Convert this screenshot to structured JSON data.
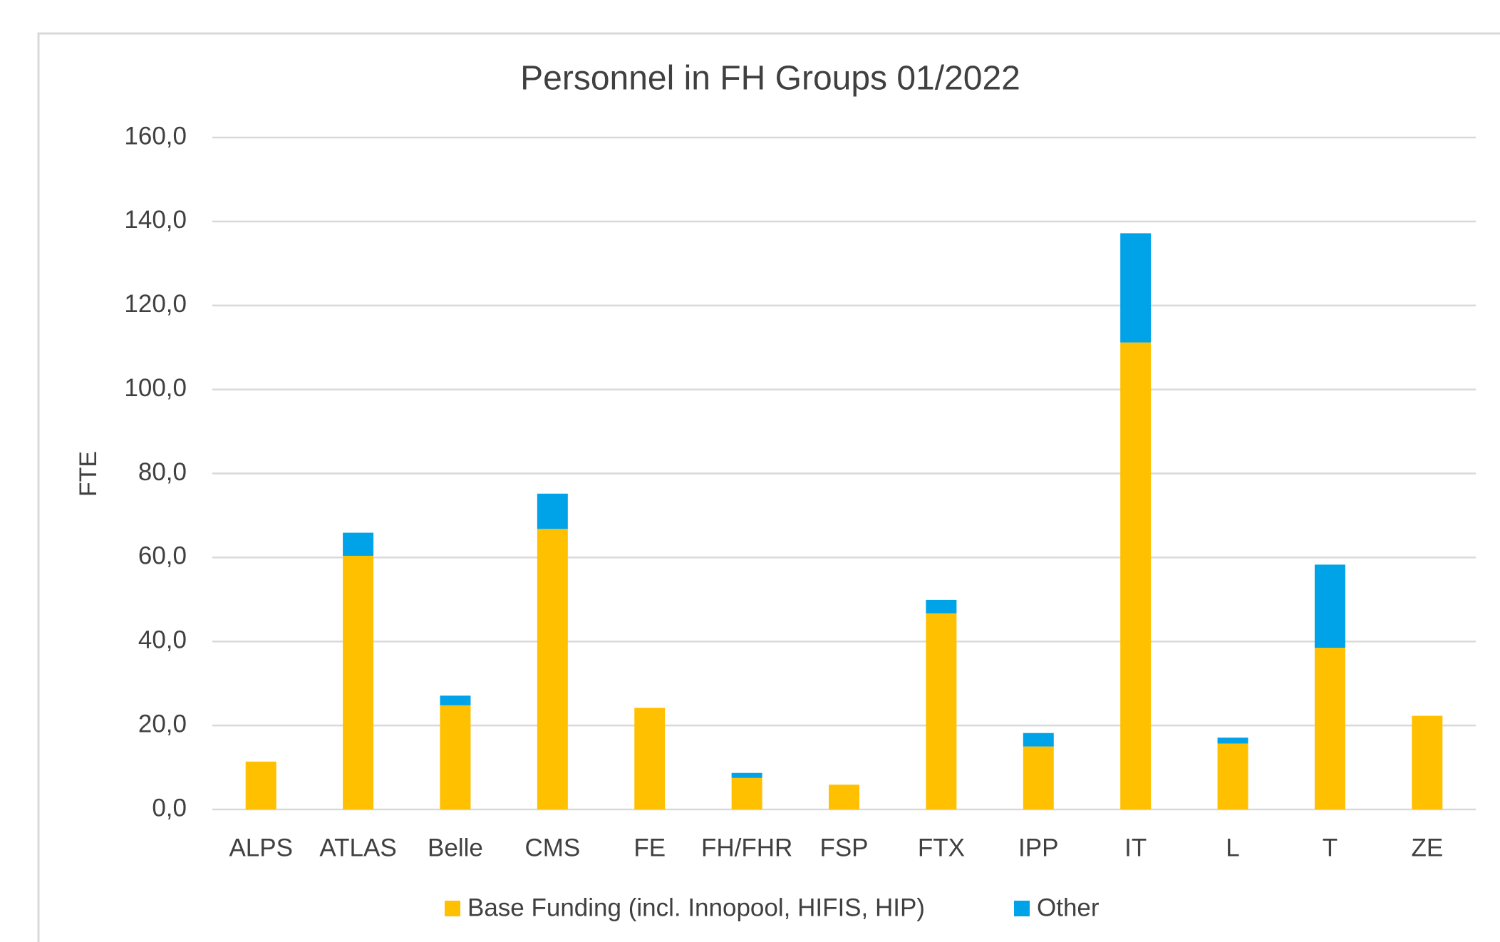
{
  "chart_data": {
    "type": "bar",
    "stacked": true,
    "title": "Personnel  in FH Groups 01/2022",
    "y_label": "FTE",
    "categories": [
      "ALPS",
      "ATLAS",
      "Belle",
      "CMS",
      "FE",
      "FH/FHR",
      "FSP",
      "FTX",
      "IPP",
      "IT",
      "L",
      "T",
      "ZE"
    ],
    "series": [
      {
        "name": "Base Funding (incl. Innopool, HIFIS, HIP)",
        "color": "#ffc000",
        "values": [
          11.4,
          60.4,
          24.8,
          66.8,
          24.2,
          7.5,
          5.9,
          46.7,
          15.0,
          111.2,
          15.7,
          38.5,
          22.3
        ]
      },
      {
        "name": "Other",
        "color": "#00a2e8",
        "values": [
          0,
          5.5,
          2.3,
          8.4,
          0,
          1.2,
          0,
          3.2,
          3.2,
          26.0,
          1.4,
          19.8,
          0
        ]
      }
    ],
    "ylim": [
      0,
      160
    ],
    "yticks": [
      {
        "value": 0,
        "label": "0,0"
      },
      {
        "value": 20,
        "label": "20,0"
      },
      {
        "value": 40,
        "label": "40,0"
      },
      {
        "value": 60,
        "label": "60,0"
      },
      {
        "value": 80,
        "label": "80,0"
      },
      {
        "value": 100,
        "label": "100,0"
      },
      {
        "value": 120,
        "label": "120,0"
      },
      {
        "value": 140,
        "label": "140,0"
      },
      {
        "value": 160,
        "label": "160,0"
      }
    ],
    "grid": true,
    "legend": "bottom"
  }
}
